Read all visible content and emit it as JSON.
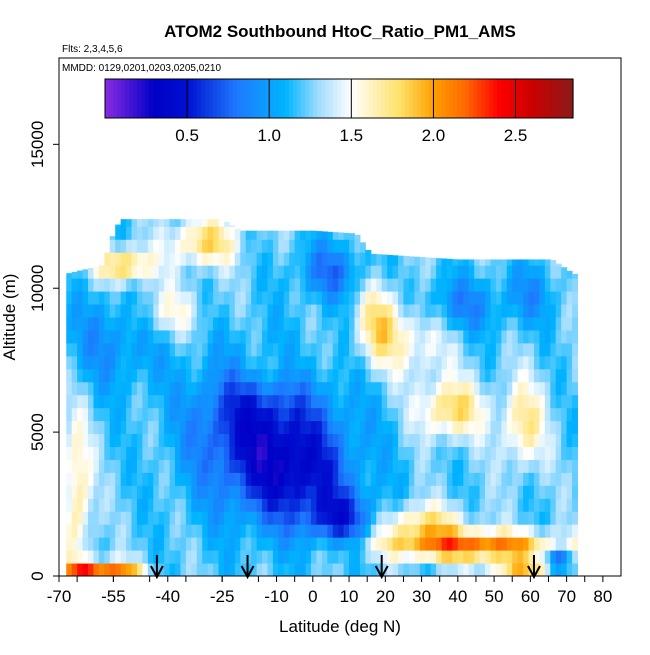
{
  "chart_data": {
    "type": "heatmap",
    "title": "ATOM2 Southbound HtoC_Ratio_PM1_AMS",
    "subtitle_flights": "Flts: 2,3,4,5,6",
    "subtitle_dates": "MMDD: 0129,0201,0203,0205,0210",
    "xlabel": "Latitude (deg N)",
    "ylabel": "Altitude (m)",
    "xlim": [
      -70,
      85
    ],
    "ylim": [
      0,
      18000
    ],
    "x_tick_labels": [
      {
        "v": -70,
        "t": "-70"
      },
      {
        "v": -55,
        "t": "-55"
      },
      {
        "v": -40,
        "t": "-40"
      },
      {
        "v": -25,
        "t": "-25"
      },
      {
        "v": -10,
        "t": "-10"
      },
      {
        "v": 0,
        "t": "0"
      },
      {
        "v": 10,
        "t": "10"
      },
      {
        "v": 20,
        "t": "20"
      },
      {
        "v": 30,
        "t": "30"
      },
      {
        "v": 40,
        "t": "40"
      },
      {
        "v": 50,
        "t": "50"
      },
      {
        "v": 60,
        "t": "60"
      },
      {
        "v": 70,
        "t": "70"
      },
      {
        "v": 80,
        "t": "80"
      }
    ],
    "y_tick_labels": [
      {
        "v": 0,
        "t": "0"
      },
      {
        "v": 5000,
        "t": "5000"
      },
      {
        "v": 10000,
        "t": "10000"
      },
      {
        "v": 15000,
        "t": "15000"
      }
    ],
    "colorbar": {
      "min": 0,
      "max": 2.85,
      "ticks": [
        {
          "v": 0.5,
          "t": "0.5"
        },
        {
          "v": 1.0,
          "t": "1.0"
        },
        {
          "v": 1.5,
          "t": "1.5"
        },
        {
          "v": 2.0,
          "t": "2.0"
        },
        {
          "v": 2.5,
          "t": "2.5"
        }
      ],
      "stops": [
        {
          "v": 0.0,
          "c": "#8a2be2"
        },
        {
          "v": 0.3,
          "c": "#0000c8"
        },
        {
          "v": 0.5,
          "c": "#0010d0"
        },
        {
          "v": 0.8,
          "c": "#1e78ff"
        },
        {
          "v": 1.1,
          "c": "#00b4ff"
        },
        {
          "v": 1.3,
          "c": "#a0dcff"
        },
        {
          "v": 1.5,
          "c": "#ffffff"
        },
        {
          "v": 1.8,
          "c": "#ffe066"
        },
        {
          "v": 2.0,
          "c": "#ffa000"
        },
        {
          "v": 2.2,
          "c": "#ff6600"
        },
        {
          "v": 2.4,
          "c": "#ff0000"
        },
        {
          "v": 2.6,
          "c": "#cc0000"
        },
        {
          "v": 2.85,
          "c": "#8b1a1a"
        }
      ]
    },
    "arrows_lat": [
      -43,
      -18,
      19,
      61
    ],
    "field": {
      "lat_min": -68,
      "lat_max": 72,
      "alt_max_profile": [
        {
          "lat": -68,
          "alt": 10500
        },
        {
          "lat": -58,
          "alt": 10800
        },
        {
          "lat": -55,
          "alt": 11900
        },
        {
          "lat": -53,
          "alt": 12400
        },
        {
          "lat": -25,
          "alt": 12400
        },
        {
          "lat": -20,
          "alt": 12000
        },
        {
          "lat": 0,
          "alt": 12000
        },
        {
          "lat": 12,
          "alt": 11900
        },
        {
          "lat": 16,
          "alt": 11200
        },
        {
          "lat": 40,
          "alt": 11000
        },
        {
          "lat": 66,
          "alt": 11000
        },
        {
          "lat": 72,
          "alt": 10500
        }
      ],
      "features": [
        {
          "lat": -10,
          "alt": 4500,
          "slat": 22,
          "salt": 2800,
          "a": -0.6
        },
        {
          "lat": -20,
          "alt": 5800,
          "slat": 14,
          "salt": 2000,
          "a": -0.3
        },
        {
          "lat": 8,
          "alt": 2000,
          "slat": 10,
          "salt": 900,
          "a": -0.55
        },
        {
          "lat": -5,
          "alt": 3500,
          "slat": 14,
          "salt": 1500,
          "a": -0.35
        },
        {
          "lat": -55,
          "alt": 8200,
          "slat": 14,
          "salt": 1800,
          "a": -0.3
        },
        {
          "lat": -52,
          "alt": 10800,
          "slat": 8,
          "salt": 600,
          "a": 0.7
        },
        {
          "lat": -30,
          "alt": 11600,
          "slat": 9,
          "salt": 800,
          "a": 0.6
        },
        {
          "lat": -40,
          "alt": 9200,
          "slat": 9,
          "salt": 900,
          "a": 0.35
        },
        {
          "lat": 45,
          "alt": 1050,
          "slat": 25,
          "salt": 500,
          "a": 0.95
        },
        {
          "lat": 30,
          "alt": 1800,
          "slat": 12,
          "salt": 700,
          "a": 0.55
        },
        {
          "lat": -62,
          "alt": 250,
          "slat": 8,
          "salt": 300,
          "a": 1.0
        },
        {
          "lat": -52,
          "alt": 250,
          "slat": 6,
          "salt": 300,
          "a": 0.6
        },
        {
          "lat": 58,
          "alt": 300,
          "slat": 10,
          "salt": 300,
          "a": 0.6
        },
        {
          "lat": 38,
          "alt": 5800,
          "slat": 9,
          "salt": 1000,
          "a": 0.6
        },
        {
          "lat": 58,
          "alt": 5300,
          "slat": 6,
          "salt": 1500,
          "a": 0.5
        },
        {
          "lat": 18,
          "alt": 8800,
          "slat": 6,
          "salt": 1400,
          "a": 0.5
        },
        {
          "lat": 28,
          "alt": 8200,
          "slat": 10,
          "salt": 1300,
          "a": 0.35
        },
        {
          "lat": 40,
          "alt": 9400,
          "slat": 12,
          "salt": 1000,
          "a": -0.35
        },
        {
          "lat": 60,
          "alt": 9800,
          "slat": 8,
          "salt": 1100,
          "a": -0.25
        },
        {
          "lat": -65,
          "alt": 2800,
          "slat": 4,
          "salt": 2800,
          "a": 0.5
        },
        {
          "lat": 68,
          "alt": 600,
          "slat": 4,
          "salt": 500,
          "a": -0.6
        },
        {
          "lat": 5,
          "alt": 10600,
          "slat": 10,
          "salt": 1000,
          "a": -0.4
        },
        {
          "lat": -12,
          "alt": 7200,
          "slat": 12,
          "salt": 900,
          "a": 0.2
        }
      ]
    }
  }
}
